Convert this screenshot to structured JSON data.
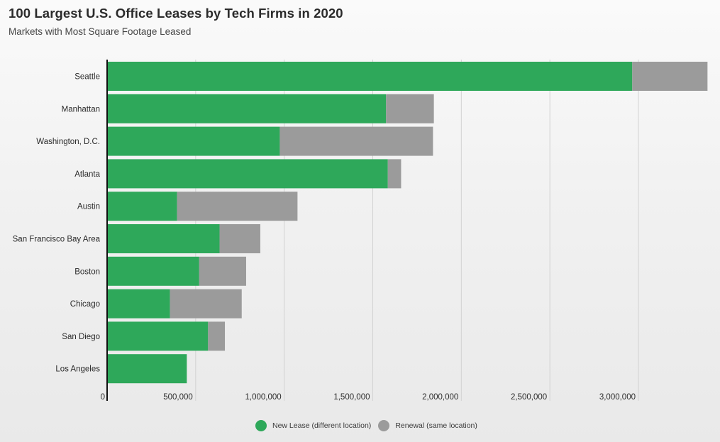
{
  "header": {
    "title": "100 Largest U.S. Office Leases by Tech Firms in 2020",
    "subtitle": "Markets with Most Square Footage Leased"
  },
  "colors": {
    "new_lease": "#2ea85a",
    "renewal": "#9b9b9b",
    "gridline": "#d2d2d2",
    "axis": "#111111"
  },
  "chart_data": {
    "type": "bar",
    "orientation": "horizontal",
    "stacked": true,
    "title": "100 Largest U.S. Office Leases by Tech Firms in 2020",
    "subtitle": "Markets with Most Square Footage Leased",
    "categories": [
      "Seattle",
      "Manhattan",
      "Washington, D.C.",
      "Atlanta",
      "Austin",
      "San Francisco Bay Area",
      "Boston",
      "Chicago",
      "San Diego",
      "Los Angeles"
    ],
    "series": [
      {
        "name": "New Lease (different location)",
        "values": [
          2965000,
          1575000,
          975000,
          1585000,
          395000,
          635000,
          520000,
          355000,
          570000,
          450000
        ]
      },
      {
        "name": "Renewal (same location)",
        "values": [
          425000,
          270000,
          865000,
          75000,
          680000,
          230000,
          265000,
          405000,
          95000,
          0
        ]
      }
    ],
    "xlim": [
      0,
      3400000
    ],
    "x_ticks": [
      {
        "value": 0,
        "label": "0"
      },
      {
        "value": 500000,
        "label": "500,000"
      },
      {
        "value": 1000000,
        "label": "1,000,000"
      },
      {
        "value": 1500000,
        "label": "1,500,000"
      },
      {
        "value": 2000000,
        "label": "2,000,000"
      },
      {
        "value": 2500000,
        "label": "2,500,000"
      },
      {
        "value": 3000000,
        "label": "3,000,000"
      }
    ],
    "xlabel": "",
    "ylabel": "",
    "grid": true,
    "legend": "bottom-center"
  }
}
